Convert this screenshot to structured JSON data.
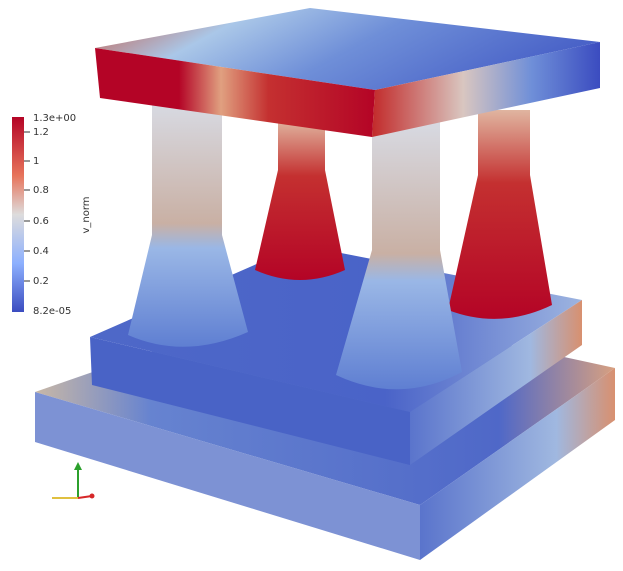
{
  "colorbar": {
    "title": "v_norm",
    "ticks": [
      "1.3e+00",
      "1.2",
      "1",
      "0.8",
      "0.6",
      "0.4",
      "0.2",
      "8.2e-05"
    ]
  }
}
